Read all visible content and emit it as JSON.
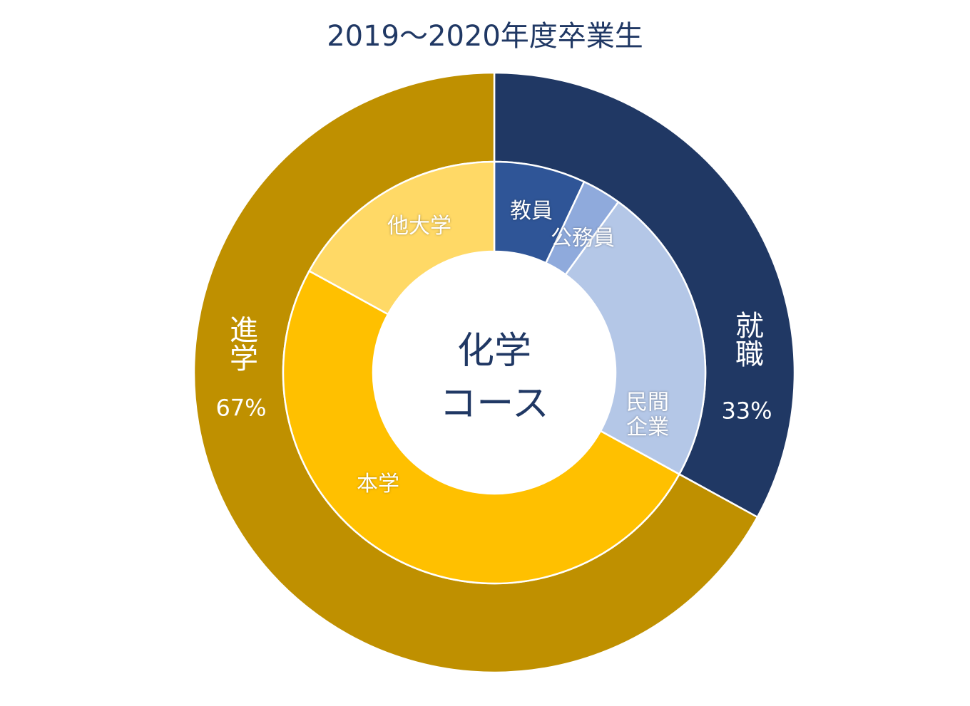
{
  "chart_data": {
    "type": "sunburst",
    "title": "2019～2020年度卒業生",
    "center_label": [
      "化学",
      "コース"
    ],
    "categories": [
      "就職",
      "進学"
    ],
    "values": [
      33,
      67
    ],
    "value_labels": [
      "33%",
      "67%"
    ],
    "colors": [
      "#203864",
      "#bf9000"
    ],
    "children": [
      {
        "categories": [
          "教員",
          "公務員",
          "民間企業"
        ],
        "values": [
          7,
          3,
          23
        ],
        "colors": [
          "#2f5597",
          "#8faadc",
          "#b4c7e7"
        ]
      },
      {
        "categories": [
          "本学",
          "他大学"
        ],
        "values": [
          50,
          17
        ],
        "colors": [
          "#ffc000",
          "#ffd966"
        ]
      }
    ]
  }
}
